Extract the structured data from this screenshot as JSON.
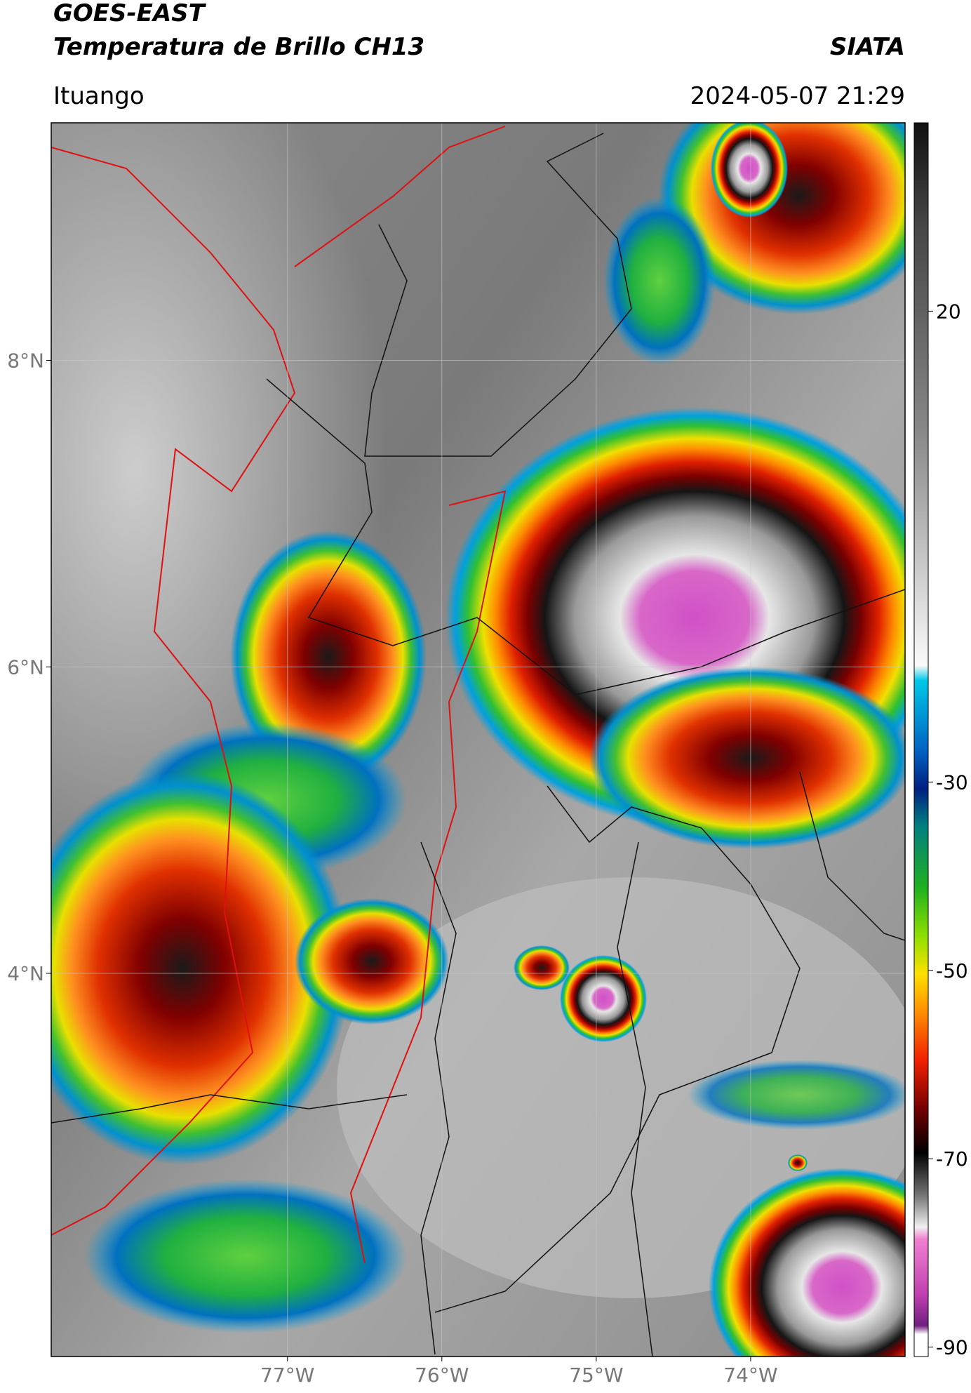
{
  "header": {
    "title": "GOES-EAST",
    "subtitle": "Temperatura de Brillo CH13",
    "source": "SIATA",
    "location": "Ituango",
    "datetime": "2024-05-07 21:29"
  },
  "map": {
    "xlim": [
      -78.53,
      -73.0
    ],
    "ylim": [
      1.5,
      9.55
    ],
    "xticks": [
      {
        "value": -77,
        "label": "77°W"
      },
      {
        "value": -76,
        "label": "76°W"
      },
      {
        "value": -75,
        "label": "75°W"
      },
      {
        "value": -74,
        "label": "74°W"
      }
    ],
    "yticks": [
      {
        "value": 8,
        "label": "8°N"
      },
      {
        "value": 6,
        "label": "6°N"
      },
      {
        "value": 4,
        "label": "4°N"
      }
    ],
    "grid": true
  },
  "colorbar": {
    "lim": [
      -91,
      40
    ],
    "ticks": [
      20,
      -30,
      -50,
      -70,
      -90
    ]
  }
}
